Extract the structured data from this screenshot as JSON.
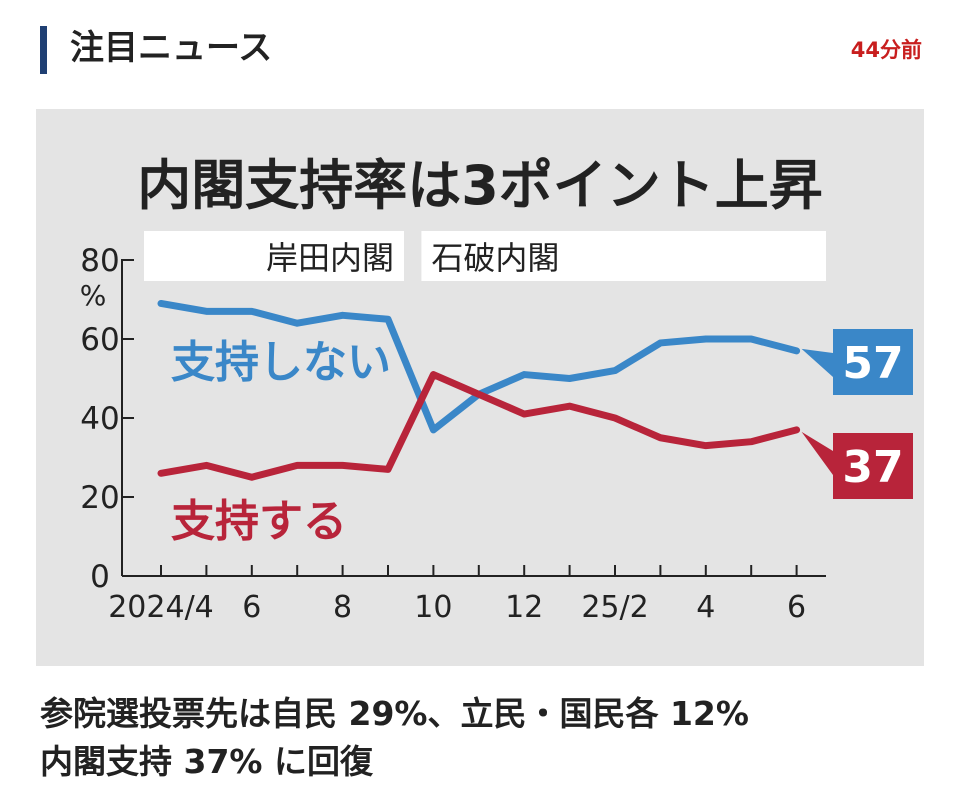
{
  "header": {
    "title": "注目ニュース",
    "time": "44分前"
  },
  "chart_data": {
    "type": "line",
    "title": "内閣支持率は3ポイント上昇",
    "unit_label": "%",
    "x_tick_labels": [
      "2024/4",
      "6",
      "8",
      "10",
      "12",
      "25/2",
      "4",
      "6"
    ],
    "x": [
      "2024/4",
      "2024/5",
      "2024/6",
      "2024/7",
      "2024/8",
      "2024/9",
      "2024/10",
      "2024/11",
      "2024/12",
      "2025/1",
      "2025/2",
      "2025/3",
      "2025/4",
      "2025/5",
      "2025/6"
    ],
    "y_ticks": [
      0,
      20,
      40,
      60,
      80
    ],
    "ylim": [
      0,
      80
    ],
    "periods": [
      {
        "label": "岸田内閣",
        "from": "2024/4",
        "to": "2024/9"
      },
      {
        "label": "石破内閣",
        "from": "2024/10",
        "to": "2025/6"
      }
    ],
    "series": [
      {
        "name": "支持しない",
        "color": "#3a87c8",
        "values": [
          69,
          67,
          67,
          64,
          66,
          65,
          37,
          46,
          51,
          50,
          52,
          59,
          60,
          60,
          57
        ],
        "end_label": "57"
      },
      {
        "name": "支持する",
        "color": "#b8243a",
        "values": [
          26,
          28,
          25,
          28,
          28,
          27,
          51,
          46,
          41,
          43,
          40,
          35,
          33,
          34,
          37
        ],
        "end_label": "37"
      }
    ]
  },
  "headline": {
    "line1": "参院選投票先は自民 29%、立民・国民各 12%",
    "line2": "内閣支持 37% に回復"
  }
}
